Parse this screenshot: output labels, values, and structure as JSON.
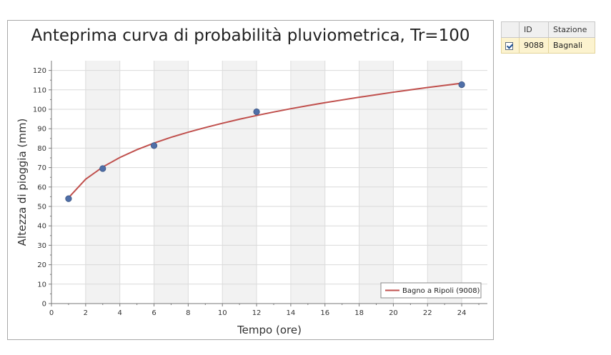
{
  "chart_data": {
    "type": "line",
    "title": "Anteprima curva di probabilità pluviometrica, Tr=100",
    "xlabel": "Tempo (ore)",
    "ylabel": "Altezza di pioggia (mm)",
    "xlim": [
      0,
      25.5
    ],
    "ylim": [
      0,
      125
    ],
    "x_ticks": [
      0,
      2,
      4,
      6,
      8,
      10,
      12,
      14,
      16,
      18,
      20,
      22,
      24
    ],
    "y_ticks": [
      0,
      10,
      20,
      30,
      40,
      50,
      60,
      70,
      80,
      90,
      100,
      110,
      120
    ],
    "grid": true,
    "legend_position": "bottom-right",
    "series": [
      {
        "name": "Bagno a Ripoli (9008)",
        "kind": "line",
        "color": "#c0504d",
        "x": [
          1,
          2,
          3,
          4,
          5,
          6,
          7,
          8,
          9,
          10,
          11,
          12,
          13,
          14,
          15,
          16,
          17,
          18,
          19,
          20,
          21,
          22,
          23,
          24
        ],
        "y": [
          54.5,
          64.0,
          70.3,
          75.2,
          79.2,
          82.6,
          85.6,
          88.2,
          90.6,
          92.8,
          94.9,
          96.8,
          98.6,
          100.3,
          101.9,
          103.4,
          104.8,
          106.2,
          107.5,
          108.8,
          110.0,
          111.2,
          112.3,
          113.4
        ]
      },
      {
        "name": "",
        "kind": "scatter",
        "color": "#4f6fa8",
        "x": [
          1,
          3,
          6,
          12,
          24
        ],
        "y": [
          54,
          69.5,
          81.3,
          98.7,
          112.7
        ]
      }
    ]
  },
  "table": {
    "columns": [
      "",
      "ID",
      "Stazione"
    ],
    "rows": [
      {
        "checked": true,
        "id": "9088",
        "station": "Bagnali"
      }
    ]
  }
}
